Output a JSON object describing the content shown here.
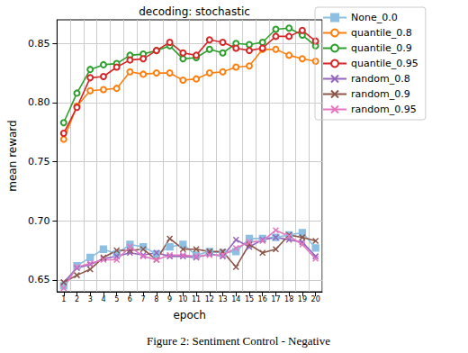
{
  "chart_data": {
    "type": "line",
    "title": "decoding: stochastic",
    "caption": "Figure 2: Sentiment Control - Negative",
    "x_label": "epoch",
    "y_label": "mean reward",
    "categories": [
      "1",
      "2",
      "3",
      "4",
      "5",
      "6",
      "7",
      "8",
      "9",
      "10",
      "11",
      "12",
      "13",
      "14",
      "15",
      "16",
      "17",
      "18",
      "19",
      "20"
    ],
    "ylim": [
      0.64,
      0.87
    ],
    "yticks": [
      0.65,
      {
        "value": 0.7,
        "label": "0.70"
      },
      0.75,
      {
        "value": 0.8,
        "label": "0.80"
      },
      0.85
    ],
    "grid": true,
    "legend": "right",
    "series": [
      {
        "name": "None_0.0",
        "color": "#8dbfe3",
        "marker": "square",
        "values": [
          0.645,
          0.662,
          0.669,
          0.676,
          0.672,
          0.68,
          0.678,
          0.672,
          0.678,
          0.68,
          0.671,
          0.674,
          0.673,
          0.674,
          0.685,
          0.685,
          0.686,
          0.688,
          0.69,
          0.677
        ]
      },
      {
        "name": "quantile_0.8",
        "color": "#ff7f0e",
        "marker": "circle",
        "values": [
          0.769,
          0.797,
          0.81,
          0.811,
          0.812,
          0.826,
          0.824,
          0.825,
          0.825,
          0.819,
          0.82,
          0.825,
          0.826,
          0.83,
          0.831,
          0.845,
          0.845,
          0.84,
          0.837,
          0.835
        ]
      },
      {
        "name": "quantile_0.9",
        "color": "#2ca02c",
        "marker": "circle",
        "values": [
          0.783,
          0.808,
          0.828,
          0.832,
          0.833,
          0.84,
          0.841,
          0.844,
          0.848,
          0.837,
          0.838,
          0.845,
          0.842,
          0.85,
          0.849,
          0.851,
          0.862,
          0.863,
          0.857,
          0.848
        ]
      },
      {
        "name": "quantile_0.95",
        "color": "#d62728",
        "marker": "circle",
        "values": [
          0.774,
          0.796,
          0.821,
          0.822,
          0.83,
          0.836,
          0.837,
          0.844,
          0.851,
          0.842,
          0.84,
          0.853,
          0.851,
          0.846,
          0.844,
          0.846,
          0.856,
          0.856,
          0.861,
          0.852
        ]
      },
      {
        "name": "random_0.8",
        "color": "#9467bd",
        "marker": "x",
        "values": [
          0.648,
          0.66,
          0.663,
          0.668,
          0.67,
          0.673,
          0.671,
          0.673,
          0.67,
          0.67,
          0.669,
          0.672,
          0.67,
          0.684,
          0.678,
          0.684,
          0.686,
          0.684,
          0.682,
          0.67
        ]
      },
      {
        "name": "random_0.9",
        "color": "#8c564b",
        "marker": "x",
        "values": [
          0.648,
          0.654,
          0.659,
          0.669,
          0.675,
          0.675,
          0.676,
          0.667,
          0.685,
          0.676,
          0.676,
          0.674,
          0.674,
          0.661,
          0.68,
          0.673,
          0.676,
          0.688,
          0.686,
          0.683
        ]
      },
      {
        "name": "random_0.95",
        "color": "#e377c2",
        "marker": "x",
        "values": [
          0.643,
          0.661,
          0.664,
          0.667,
          0.667,
          0.678,
          0.67,
          0.667,
          0.671,
          0.671,
          0.67,
          0.671,
          0.671,
          0.677,
          0.682,
          0.683,
          0.692,
          0.687,
          0.68,
          0.668
        ]
      }
    ]
  }
}
